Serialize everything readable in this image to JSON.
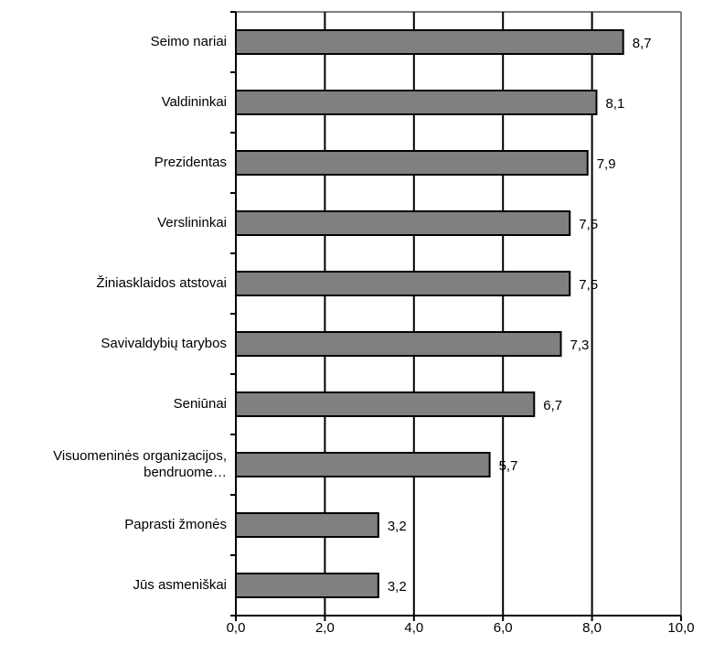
{
  "chart_data": {
    "type": "bar",
    "orientation": "horizontal",
    "categories": [
      "Seimo nariai",
      "Valdininkai",
      "Prezidentas",
      "Verslininkai",
      "Žiniasklaidos atstovai",
      "Savivaldybių tarybos",
      "Seniūnai",
      "Visuomeninės organizacijos, bendruome…",
      "Paprasti žmonės",
      "Jūs asmeniškai"
    ],
    "values": [
      8.7,
      8.1,
      7.9,
      7.5,
      7.5,
      7.3,
      6.7,
      5.7,
      3.2,
      3.2
    ],
    "value_labels": [
      "8,7",
      "8,1",
      "7,9",
      "7,5",
      "7,5",
      "7,3",
      "6,7",
      "5,7",
      "3,2",
      "3,2"
    ],
    "color": "#808080",
    "xlim": [
      0,
      10
    ],
    "xticks": [
      {
        "value": 0,
        "label": "0,0"
      },
      {
        "value": 2,
        "label": "2,0"
      },
      {
        "value": 4,
        "label": "4,0"
      },
      {
        "value": 6,
        "label": "6,0"
      },
      {
        "value": 8,
        "label": "8,0"
      },
      {
        "value": 10,
        "label": "10,0"
      }
    ],
    "grid": true
  }
}
